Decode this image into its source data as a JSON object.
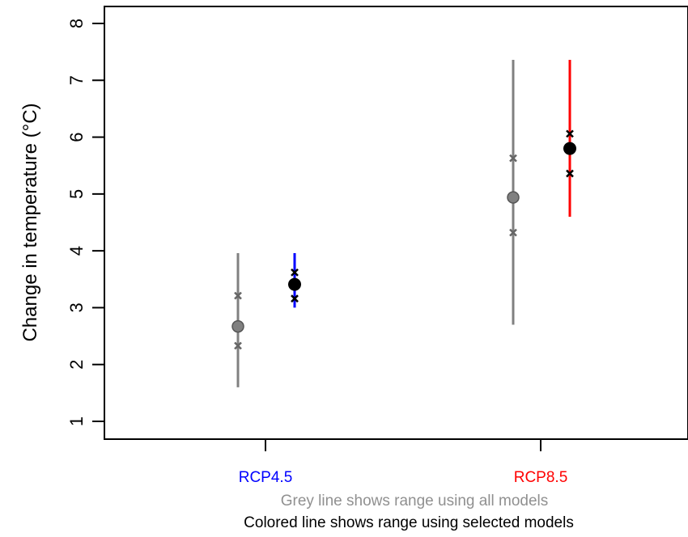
{
  "chart_data": {
    "type": "scatter",
    "ylabel": "Change in temperature (°C)",
    "ylim": [
      1,
      8
    ],
    "yticks": [
      1,
      2,
      3,
      4,
      5,
      6,
      7,
      8
    ],
    "categories": [
      "RCP4.5",
      "RCP8.5"
    ],
    "category_colors": [
      "#0000ff",
      "#ff0000"
    ],
    "series": [
      {
        "values": [
          2.67,
          4.94
        ],
        "low": [
          1.6,
          2.7
        ],
        "high": [
          3.96,
          7.36
        ],
        "q_low": [
          2.33,
          4.32
        ],
        "q_high": [
          3.21,
          5.63
        ],
        "color": "#808080"
      },
      {
        "values": [
          3.41,
          5.8
        ],
        "low": [
          3.0,
          4.6
        ],
        "high": [
          3.96,
          7.36
        ],
        "q_low": [
          3.16,
          5.36
        ],
        "q_high": [
          3.62,
          6.06
        ],
        "color": "category"
      }
    ],
    "notes": [
      {
        "text": "Grey line shows range using all models",
        "color": "#909090"
      },
      {
        "text": "Colored line shows range using selected models",
        "color": "#000000"
      }
    ],
    "grid": false
  }
}
